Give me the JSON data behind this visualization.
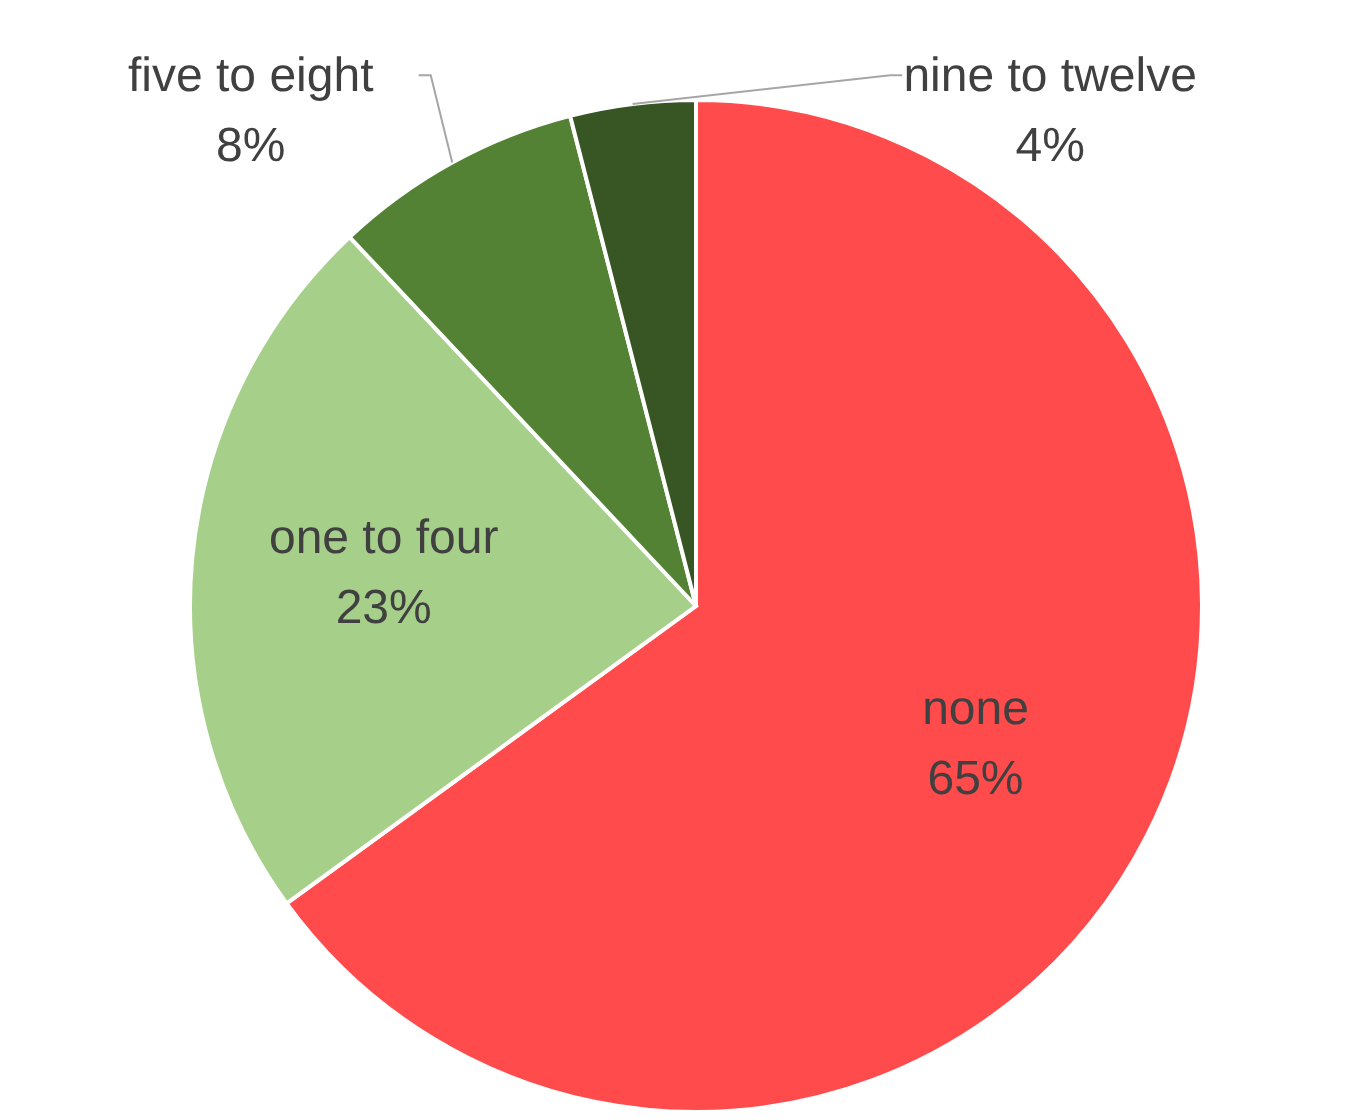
{
  "chart_data": {
    "type": "pie",
    "categories": [
      "none",
      "one to four",
      "five to eight",
      "nine to twelve"
    ],
    "values": [
      65,
      23,
      8,
      4
    ],
    "colors": [
      "#ff4b4b",
      "#a6d08a",
      "#548235",
      "#375623"
    ],
    "value_labels": [
      "65%",
      "23%",
      "8%",
      "4%"
    ]
  }
}
